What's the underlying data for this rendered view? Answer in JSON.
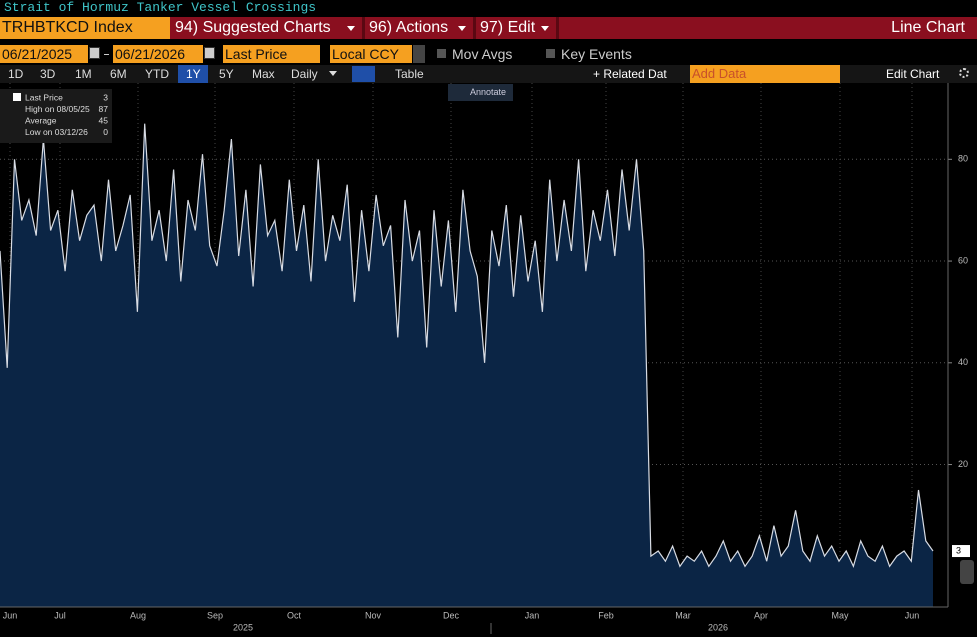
{
  "ui": {
    "window_title": "Strait of Hormuz Tanker Vessel Crossings",
    "security": "TRHBTKCD Index",
    "menus": [
      "94) Suggested Charts",
      "96) Actions",
      "97) Edit"
    ],
    "view": "Line Chart",
    "start_date": "06/21/2025",
    "end_date": "06/21/2026",
    "field": "Last Price",
    "currency": "Local CCY",
    "options": [
      "Mov Avgs",
      "Key Events"
    ],
    "periods": [
      "1D",
      "3D",
      "1M",
      "6M",
      "YTD",
      "1Y",
      "5Y",
      "Max"
    ],
    "frequency": "Daily",
    "table": "Table",
    "related": "+ Related Dat",
    "add_data": "Add Data",
    "edit_chart": "Edit Chart",
    "annotate": "Annotate"
  },
  "chart_data": {
    "type": "line",
    "legend": [
      {
        "label": "Last Price",
        "value": 3
      },
      {
        "label": "High on 08/05/25",
        "value": 87
      },
      {
        "label": "Average",
        "value": 45
      },
      {
        "label": "Low on 03/12/26",
        "value": 0
      }
    ],
    "xtick_labels": [
      "Jun",
      "Jul",
      "Aug",
      "Sep",
      "Oct",
      "Nov",
      "Dec",
      "Jan",
      "Feb",
      "Mar",
      "Apr",
      "May",
      "Jun"
    ],
    "year_labels": [
      "2025",
      "2026"
    ],
    "values": [
      62,
      39,
      80,
      68,
      72,
      65,
      84,
      66,
      70,
      58,
      74,
      64,
      69,
      71,
      60,
      76,
      62,
      67,
      73,
      50,
      87,
      64,
      70,
      60,
      78,
      56,
      72,
      66,
      81,
      63,
      59,
      70,
      84,
      61,
      74,
      55,
      79,
      65,
      68,
      58,
      76,
      62,
      71,
      56,
      80,
      60,
      69,
      64,
      75,
      52,
      70,
      58,
      73,
      63,
      67,
      45,
      72,
      60,
      66,
      43,
      70,
      55,
      68,
      50,
      74,
      62,
      57,
      40,
      66,
      59,
      71,
      53,
      69,
      56,
      64,
      50,
      76,
      60,
      72,
      62,
      80,
      58,
      70,
      64,
      74,
      61,
      78,
      66,
      80,
      62,
      2,
      3,
      1,
      4,
      0,
      2,
      1,
      3,
      0,
      2,
      5,
      1,
      3,
      0,
      2,
      6,
      1,
      8,
      2,
      4,
      11,
      3,
      1,
      6,
      2,
      4,
      1,
      3,
      0,
      5,
      2,
      1,
      4,
      0,
      2,
      3,
      1,
      15,
      5,
      3
    ],
    "color": "#d8dce4",
    "area_color": "#0b2545",
    "ylim": [
      -8,
      95
    ],
    "yticks": [
      20,
      40,
      60,
      80
    ],
    "grid": true,
    "legend_position": "upper left"
  }
}
